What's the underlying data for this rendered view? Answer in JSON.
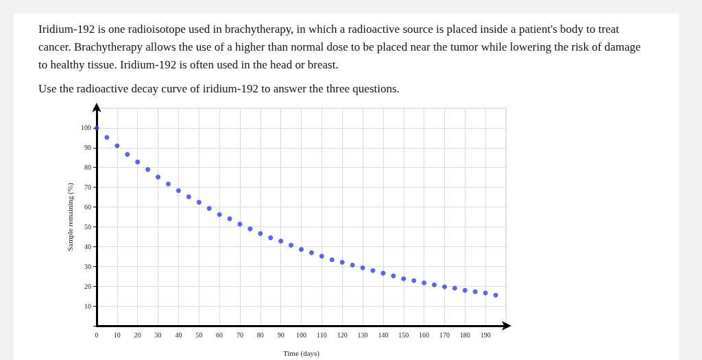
{
  "chart_data": {
    "type": "scatter",
    "title": "Iridium-192 is one radioisotope used in brachytherapy, in which a radioactive source is placed inside a patient's body to treat cancer. Brachytherapy allows the use of a higher than normal dose to be placed near the tumor while lowering the risk of damage to healthy tissue. Iridium-192 is often used in the head or breast.",
    "subtitle": "Use the radioactive decay curve of iridium-192 to answer the three questions.",
    "xlabel": "Time (days)",
    "ylabel": "Sample remaining (%)",
    "x": [
      0,
      5,
      10,
      15,
      20,
      25,
      30,
      35,
      40,
      45,
      50,
      55,
      60,
      65,
      70,
      75,
      80,
      85,
      90,
      95,
      100,
      105,
      110,
      115,
      120,
      125,
      130,
      135,
      140,
      145,
      150,
      155,
      160,
      165,
      170,
      175,
      180,
      185,
      190,
      195
    ],
    "series": [
      {
        "color": "#2f3ff5",
        "values": [
          100,
          95.2,
          91.0,
          86.6,
          82.8,
          79.0,
          75.2,
          71.7,
          68.3,
          65.2,
          62.4,
          59.3,
          56.2,
          54.1,
          51.4,
          49.0,
          46.6,
          44.5,
          42.8,
          40.7,
          38.6,
          36.9,
          35.2,
          33.4,
          32.1,
          30.7,
          29.3,
          27.9,
          26.6,
          25.2,
          23.8,
          22.8,
          21.7,
          20.7,
          19.7,
          19.0,
          17.9,
          17.2,
          16.6,
          15.5
        ]
      }
    ],
    "xlim": [
      0,
      200
    ],
    "ylim": [
      0,
      110
    ],
    "xticks": [
      0,
      10,
      20,
      30,
      40,
      50,
      60,
      70,
      80,
      90,
      100,
      110,
      120,
      130,
      140,
      150,
      160,
      170,
      180,
      190,
      {
        "value": 200,
        "label": null
      }
    ],
    "yticks": [
      {
        "value": 0,
        "label": null
      },
      10,
      20,
      30,
      40,
      50,
      60,
      70,
      80,
      90,
      100,
      {
        "value": 110,
        "label": null
      }
    ],
    "grid": true,
    "marker": "circle"
  }
}
